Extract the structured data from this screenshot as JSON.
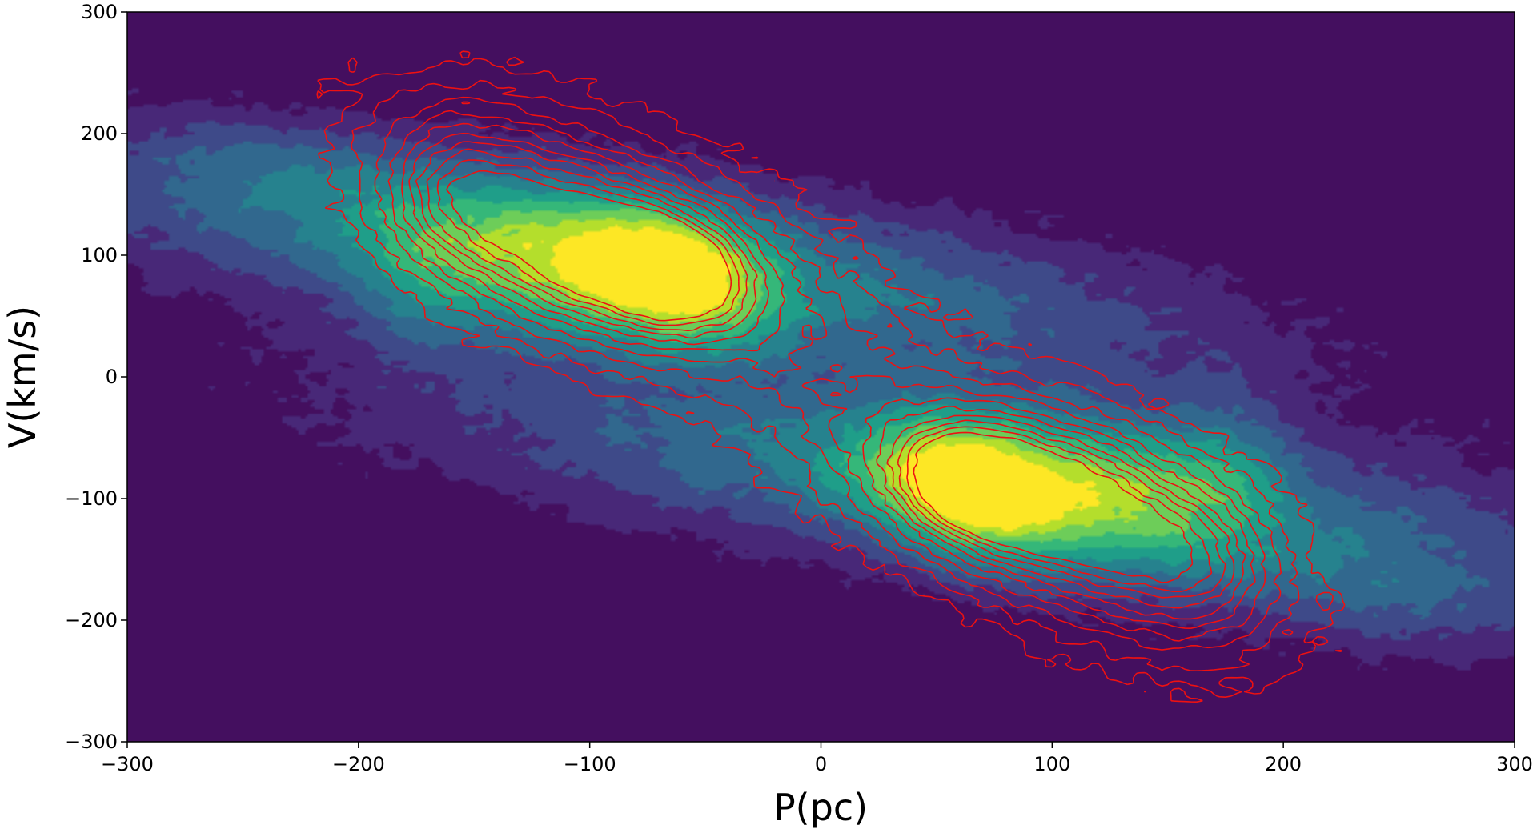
{
  "chart_data": {
    "type": "heatmap",
    "subtype": "filled-contour with overlaid line contours (position-velocity diagram)",
    "xlabel": "P(pc)",
    "ylabel": "V(km/s)",
    "xlim": [
      -300,
      300
    ],
    "ylim": [
      -300,
      300
    ],
    "xticks": [
      -300,
      -200,
      -100,
      0,
      100,
      200,
      300
    ],
    "yticks": [
      -300,
      -200,
      -100,
      0,
      100,
      200,
      300
    ],
    "xtick_labels": [
      "−300",
      "−200",
      "−100",
      "0",
      "100",
      "200",
      "300"
    ],
    "ytick_labels": [
      "−300",
      "−200",
      "−100",
      "0",
      "100",
      "200",
      "300"
    ],
    "grid": false,
    "colormap": "viridis",
    "background_color": "#440f5f",
    "contour_line_color": "#ee1111",
    "filled_components": [
      {
        "x": -85,
        "y": 95,
        "sx": 165,
        "sy": 62,
        "rho": -0.62,
        "amp": 0.42
      },
      {
        "x": -68,
        "y": 85,
        "sx": 30,
        "sy": 42,
        "rho": -0.25,
        "amp": 0.58
      },
      {
        "x": -130,
        "y": 95,
        "sx": 28,
        "sy": 48,
        "rho": -0.2,
        "amp": 0.24
      },
      {
        "x": -175,
        "y": 75,
        "sx": 20,
        "sy": 45,
        "rho": 0.0,
        "amp": 0.18
      },
      {
        "x": -230,
        "y": 170,
        "sx": 55,
        "sy": 35,
        "rho": -0.4,
        "amp": 0.15
      },
      {
        "x": 85,
        "y": -90,
        "sx": 165,
        "sy": 62,
        "rho": -0.62,
        "amp": 0.42
      },
      {
        "x": 65,
        "y": -92,
        "sx": 30,
        "sy": 42,
        "rho": -0.25,
        "amp": 0.58
      },
      {
        "x": 130,
        "y": -95,
        "sx": 28,
        "sy": 48,
        "rho": -0.2,
        "amp": 0.24
      },
      {
        "x": 175,
        "y": -75,
        "sx": 20,
        "sy": 45,
        "rho": 0.0,
        "amp": 0.18
      },
      {
        "x": 240,
        "y": -185,
        "sx": 55,
        "sy": 35,
        "rho": -0.4,
        "amp": 0.15
      }
    ],
    "contour_components": [
      {
        "x": -85,
        "y": 110,
        "sx": 60,
        "sy": 68,
        "rho": -0.62,
        "amp": 0.45
      },
      {
        "x": -68,
        "y": 88,
        "sx": 22,
        "sy": 32,
        "rho": -0.2,
        "amp": 0.55
      },
      {
        "x": -120,
        "y": 110,
        "sx": 30,
        "sy": 50,
        "rho": -0.3,
        "amp": 0.35
      },
      {
        "x": -160,
        "y": 150,
        "sx": 20,
        "sy": 40,
        "rho": 0.0,
        "amp": 0.25
      },
      {
        "x": 90,
        "y": -105,
        "sx": 60,
        "sy": 68,
        "rho": -0.62,
        "amp": 0.45
      },
      {
        "x": 68,
        "y": -90,
        "sx": 22,
        "sy": 32,
        "rho": -0.2,
        "amp": 0.55
      },
      {
        "x": 120,
        "y": -110,
        "sx": 30,
        "sy": 50,
        "rho": -0.3,
        "amp": 0.35
      },
      {
        "x": 165,
        "y": -150,
        "sx": 20,
        "sy": 40,
        "rho": 0.0,
        "amp": 0.25
      }
    ]
  }
}
